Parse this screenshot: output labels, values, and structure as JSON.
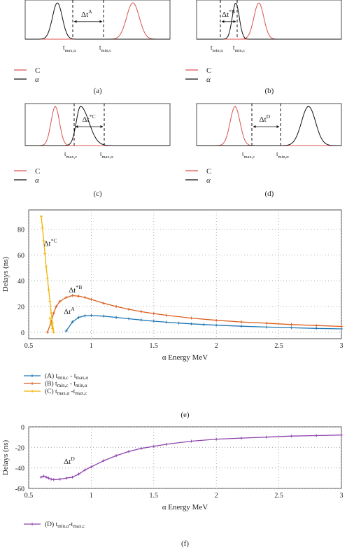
{
  "panels": [
    {
      "id": "a",
      "caption": "(a)",
      "red_label": "C",
      "black_label": "α",
      "delta_label": "Δt",
      "delta_sup": "A",
      "tick1": "t",
      "tick1_sub": "max,α",
      "tick2": "t",
      "tick2_sub": "min,c"
    },
    {
      "id": "b",
      "caption": "(b)",
      "red_label": "C",
      "black_label": "α",
      "delta_label": "Δt",
      "delta_sup": "*B",
      "tick1": "t",
      "tick1_sub": "min,α",
      "tick2": "t",
      "tick2_sub": "min,c"
    },
    {
      "id": "c",
      "caption": "(c)",
      "red_label": "C",
      "black_label": "α",
      "delta_label": "Δt",
      "delta_sup": "*C",
      "tick1": "t",
      "tick1_sub": "max,c",
      "tick2": "t",
      "tick2_sub": "max,α"
    },
    {
      "id": "d",
      "caption": "(d)",
      "red_label": "C",
      "black_label": "α",
      "delta_label": "Δt",
      "delta_sup": "D",
      "tick1": "t",
      "tick1_sub": "max,c",
      "tick2": "t",
      "tick2_sub": "min,α"
    }
  ],
  "colors": {
    "red": "#d9534f",
    "black": "#111111",
    "blue": "#1f77b4",
    "orange": "#d95f1f",
    "yellow": "#f0b400",
    "purple": "#8e44ad",
    "grid": "#999999"
  },
  "chart_data": [
    {
      "type": "line",
      "caption": "(e)",
      "xlabel": "α Energy MeV",
      "ylabel": "Delays (ns)",
      "xlim": [
        0.5,
        3.0
      ],
      "ylim": [
        -5,
        95
      ],
      "xticks": [
        "0.5",
        "1",
        "1.5",
        "2",
        "2.5",
        "3"
      ],
      "yticks": [
        "0",
        "20",
        "40",
        "60",
        "80"
      ],
      "grid": true,
      "legend_position": "bottom-left, below plot",
      "annotations": [
        {
          "text": "Δt",
          "sup": "*C",
          "x": 0.62,
          "y": 67
        },
        {
          "text": "Δt",
          "sup": "*B",
          "x": 0.82,
          "y": 31
        },
        {
          "text": "Δt",
          "sup": "A",
          "x": 0.78,
          "y": 14
        }
      ],
      "series": [
        {
          "name": "(A) t",
          "name_sub1": "min,c",
          "name_mid": " - t",
          "name_sub2": "max,α",
          "color": "#1f77b4",
          "x": [
            0.8,
            0.85,
            0.9,
            0.95,
            1.0,
            1.1,
            1.2,
            1.3,
            1.4,
            1.5,
            1.6,
            1.7,
            1.8,
            1.9,
            2.0,
            2.2,
            2.4,
            2.6,
            2.8,
            3.0
          ],
          "y": [
            1,
            8,
            11.5,
            12.8,
            13,
            12.5,
            11.5,
            10.5,
            9.5,
            8.6,
            7.8,
            7.1,
            6.5,
            6.0,
            5.5,
            4.7,
            4.0,
            3.5,
            3.0,
            2.6
          ]
        },
        {
          "name": "(B) t",
          "name_sub1": "min,c",
          "name_mid": " - t",
          "name_sub2": "min,α",
          "color": "#d95f1f",
          "x": [
            0.65,
            0.68,
            0.7,
            0.72,
            0.75,
            0.8,
            0.85,
            0.9,
            0.95,
            1.0,
            1.1,
            1.2,
            1.3,
            1.4,
            1.5,
            1.6,
            1.8,
            2.0,
            2.2,
            2.4,
            2.6,
            2.8,
            3.0
          ],
          "y": [
            0,
            8,
            15,
            20,
            24,
            27,
            28.5,
            28,
            27,
            25.5,
            22.5,
            20,
            17.8,
            16,
            14.5,
            13.2,
            11,
            9.3,
            8,
            7,
            6,
            5.2,
            4.5
          ]
        },
        {
          "name": "(C) t",
          "name_sub1": "max,α",
          "name_mid": " -t",
          "name_sub2": "max,c",
          "color": "#f0b400",
          "x": [
            0.6,
            0.61,
            0.62,
            0.63,
            0.64,
            0.65,
            0.66,
            0.67,
            0.68,
            0.69,
            0.7,
            0.69,
            0.68,
            0.67
          ],
          "y": [
            90,
            81,
            71,
            61,
            51,
            42,
            33,
            24,
            15,
            7,
            0,
            3,
            7,
            11
          ]
        }
      ]
    },
    {
      "type": "line",
      "caption": "(f)",
      "xlabel": "α Energy MeV",
      "ylabel": "Delays (ns)",
      "xlim": [
        0.5,
        3.0
      ],
      "ylim": [
        -60,
        0
      ],
      "xticks": [
        "0.5",
        "1",
        "1.5",
        "2",
        "2.5",
        "3"
      ],
      "yticks": [
        "0",
        "-20",
        "-40",
        "-60"
      ],
      "grid": true,
      "legend_position": "bottom-left, below plot",
      "annotations": [
        {
          "text": "Δt",
          "sup": "D",
          "x": 0.78,
          "y": -36
        }
      ],
      "series": [
        {
          "name": "(D) t",
          "name_sub1": "min,α",
          "name_mid": "-t",
          "name_sub2": "max,c",
          "color": "#8e44ad",
          "x": [
            0.6,
            0.62,
            0.64,
            0.66,
            0.68,
            0.7,
            0.75,
            0.8,
            0.85,
            0.9,
            0.95,
            1.0,
            1.1,
            1.2,
            1.3,
            1.4,
            1.5,
            1.6,
            1.8,
            2.0,
            2.2,
            2.4,
            2.6,
            2.8,
            3.0
          ],
          "y": [
            -49,
            -48,
            -49,
            -50,
            -51,
            -51.5,
            -51,
            -50,
            -49,
            -46,
            -42,
            -39,
            -33,
            -28,
            -24,
            -21,
            -19,
            -17,
            -14,
            -12,
            -11,
            -10,
            -9,
            -8.5,
            -8
          ]
        }
      ]
    }
  ]
}
